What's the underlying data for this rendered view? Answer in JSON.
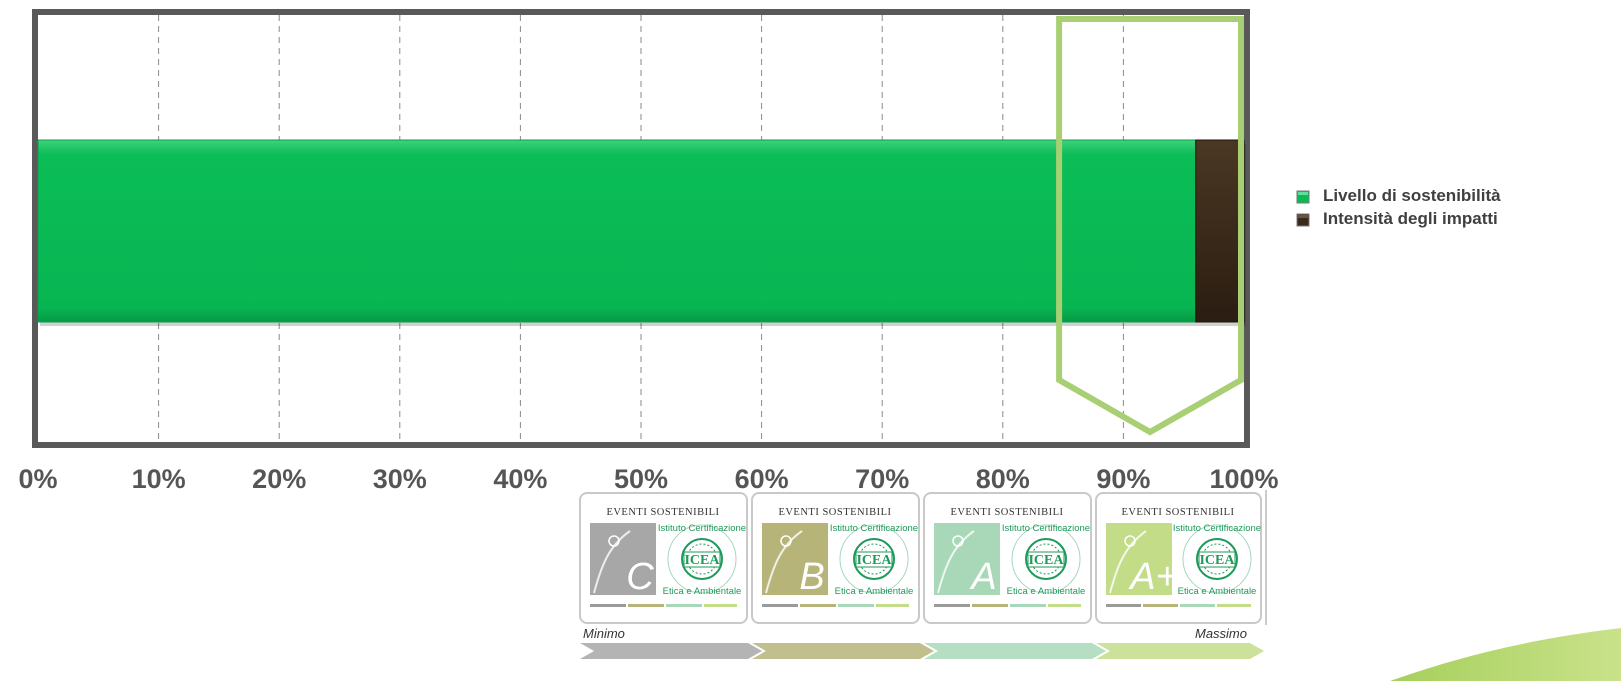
{
  "chart_data": {
    "type": "bar",
    "orientation": "horizontal",
    "stacked": true,
    "categories": [
      ""
    ],
    "series": [
      {
        "name": "Livello di sostenibilità",
        "values": [
          96
        ],
        "color": "#08bb55"
      },
      {
        "name": "Intensità degli impatti",
        "values": [
          4
        ],
        "color": "#3b2a1a"
      }
    ],
    "xlim": [
      0,
      100
    ],
    "x_ticks": [
      0,
      10,
      20,
      30,
      40,
      50,
      60,
      70,
      80,
      90,
      100
    ],
    "tick_labels": [
      "0%",
      "10%",
      "20%",
      "30%",
      "40%",
      "50%",
      "60%",
      "70%",
      "80%",
      "90%",
      "100%"
    ],
    "grid": "vertical dashed",
    "legend_position": "right",
    "highlight_range": [
      85,
      100
    ],
    "highlight_color": "#a8cf73"
  },
  "badges": [
    {
      "top": "EVENTI SOSTENIBILI",
      "ring": "Istituto Certificazione Etica e Ambientale",
      "logo": "ICEA",
      "grade": "C",
      "color": "#a7a7a7"
    },
    {
      "top": "EVENTI SOSTENIBILI",
      "ring": "Istituto Certificazione Etica e Ambientale",
      "logo": "ICEA",
      "grade": "B",
      "color": "#b7b47a"
    },
    {
      "top": "EVENTI SOSTENIBILI",
      "ring": "Istituto Certificazione Etica e Ambientale",
      "logo": "ICEA",
      "grade": "A",
      "color": "#a9d8b8"
    },
    {
      "top": "EVENTI SOSTENIBILI",
      "ring": "Istituto Certificazione Etica e Ambientale",
      "logo": "ICEA",
      "grade": "A+",
      "color": "#c3dc88"
    }
  ],
  "scale": {
    "min_label": "Minimo",
    "max_label": "Massimo"
  }
}
